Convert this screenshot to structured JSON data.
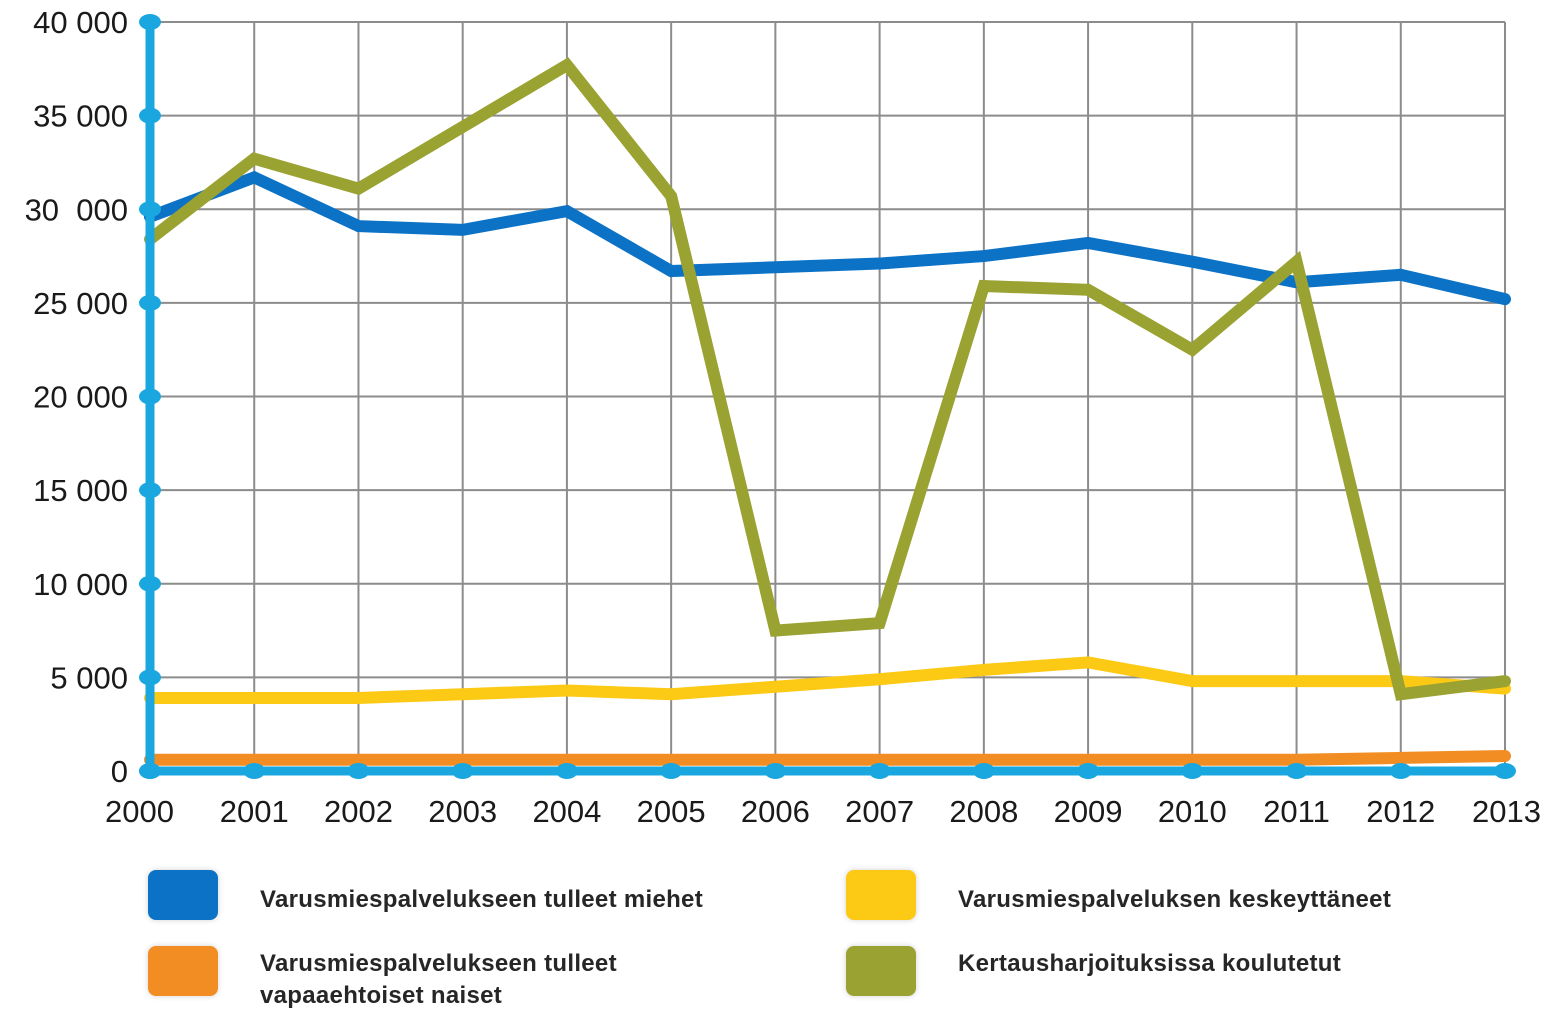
{
  "chart_data": {
    "type": "line",
    "x": [
      "2000",
      "2001",
      "2002",
      "2003",
      "2004",
      "2005",
      "2006",
      "2007",
      "2008",
      "2009",
      "2010",
      "2011",
      "2012",
      "2013"
    ],
    "y_ticks": [
      "0",
      "5 000",
      "10 000",
      "15 000",
      "20 000",
      "25 000",
      "30  000",
      "35 000",
      "40 000"
    ],
    "ylim": [
      0,
      40000
    ],
    "grid": true,
    "legend_position": "bottom",
    "series": [
      {
        "name": "Varusmiespalvelukseen tulleet miehet",
        "color": "#0b72c6",
        "values": [
          29600,
          31700,
          29100,
          28900,
          29900,
          26700,
          26900,
          27100,
          27500,
          28200,
          27200,
          26100,
          26500,
          25200
        ]
      },
      {
        "name": "Varusmiespalveluksen keskeyttäneet",
        "color": "#fcc915",
        "values": [
          3900,
          3900,
          3900,
          4100,
          4300,
          4100,
          4500,
          4900,
          5400,
          5800,
          4800,
          4800,
          4800,
          4400
        ]
      },
      {
        "name": "Varusmiespalvelukseen tulleet\nvapaaehtoiset naiset",
        "color": "#f28d23",
        "values": [
          600,
          600,
          600,
          600,
          600,
          600,
          600,
          600,
          600,
          600,
          600,
          600,
          700,
          800
        ]
      },
      {
        "name": "Kertausharjoituksissa koulutetut",
        "color": "#9aa232",
        "values": [
          28400,
          32700,
          31100,
          34400,
          37700,
          30700,
          7500,
          7900,
          25900,
          25700,
          22500,
          27200,
          4100,
          4800
        ]
      }
    ],
    "axis_color": "#1aa7e0",
    "grid_color": "#8c8c8c"
  },
  "legend": [
    {
      "label": "Varusmiespalvelukseen tulleet miehet",
      "color": "#0b72c6"
    },
    {
      "label": "Varusmiespalveluksen keskeyttäneet",
      "color": "#fcc915"
    },
    {
      "label": "Varusmiespalvelukseen tulleet\nvapaaehtoiset naiset",
      "color": "#f28d23"
    },
    {
      "label": "Kertausharjoituksissa koulutetut",
      "color": "#9aa232"
    }
  ]
}
